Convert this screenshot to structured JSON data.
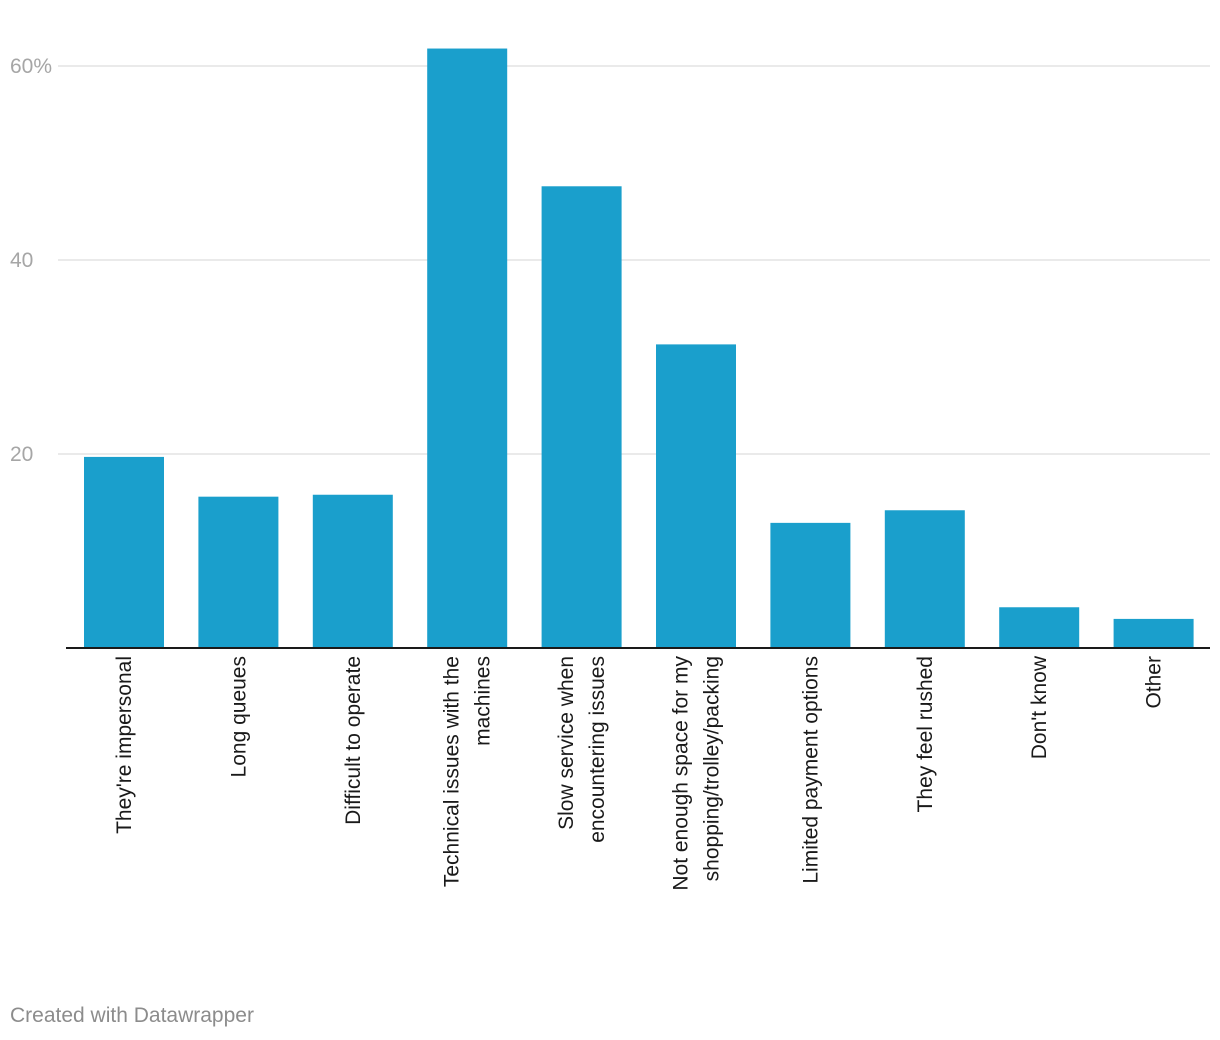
{
  "chart_data": {
    "type": "bar",
    "categories": [
      [
        "They're impersonal"
      ],
      [
        "Long queues"
      ],
      [
        "Difficult to operate"
      ],
      [
        "Technical issues with the",
        "machines"
      ],
      [
        "Slow service when",
        "encountering issues"
      ],
      [
        "Not enough space for my",
        "shopping/trolley/packing"
      ],
      [
        "Limited payment options"
      ],
      [
        "They feel rushed"
      ],
      [
        "Don't know"
      ],
      [
        "Other"
      ]
    ],
    "values": [
      19.7,
      15.6,
      15.8,
      61.8,
      47.6,
      31.3,
      12.9,
      14.2,
      4.2,
      3.0
    ],
    "ylim": [
      0,
      62
    ],
    "yticks": [
      {
        "value": 20,
        "label": "20"
      },
      {
        "value": 40,
        "label": "40"
      },
      {
        "value": 60,
        "label": "60%"
      }
    ],
    "title": "",
    "xlabel": "",
    "ylabel": "",
    "bar_color": "#1a9fcc",
    "grid": true
  },
  "footer": {
    "credit": "Created with Datawrapper"
  }
}
